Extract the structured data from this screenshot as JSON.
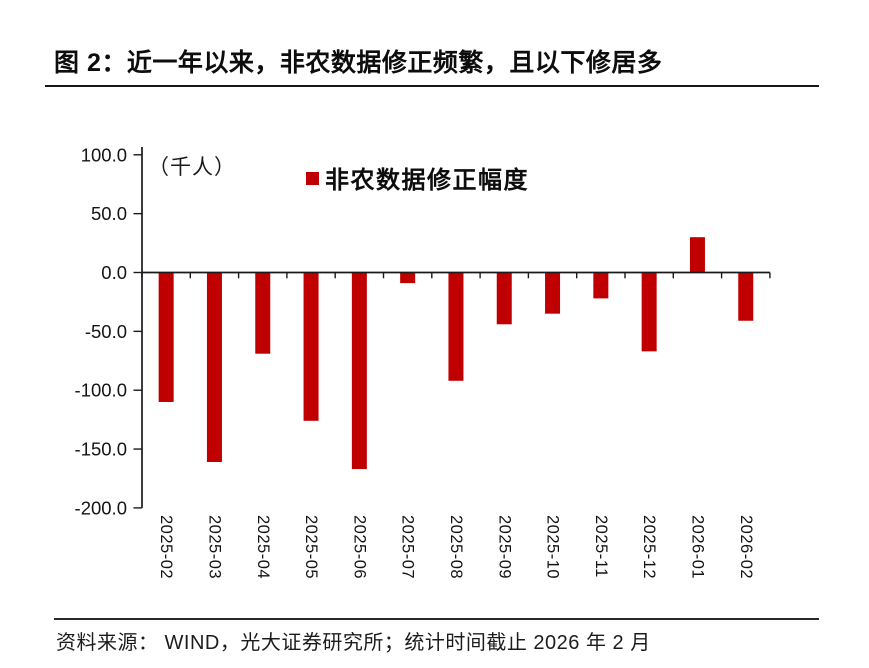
{
  "header": {
    "title": "图 2：近一年以来，非农数据修正频繁，且以下修居多"
  },
  "chart": {
    "unit_label": "（千人）",
    "legend_label": "非农数据修正幅度",
    "colors": {
      "bar": "#c00000",
      "axis": "#1a1a1a",
      "tick_text": "#141414"
    }
  },
  "chart_data": {
    "type": "bar",
    "title": "图 2：近一年以来，非农数据修正频繁，且以下修居多",
    "series_name": "非农数据修正幅度",
    "unit": "千人",
    "categories": [
      "2025-02",
      "2025-03",
      "2025-04",
      "2025-05",
      "2025-06",
      "2025-07",
      "2025-08",
      "2025-09",
      "2025-10",
      "2025-11",
      "2025-12",
      "2026-01",
      "2026-02"
    ],
    "values": [
      -110,
      -161,
      -69,
      -126,
      -167,
      -9,
      -92,
      -44,
      -35,
      -22,
      -67,
      30,
      -41
    ],
    "ylim": [
      -200,
      100
    ],
    "yticks": [
      100,
      50,
      0,
      -50,
      -100,
      -150,
      -200
    ],
    "ytick_labels": [
      "100.0",
      "50.0",
      "0.0",
      "-50.0",
      "-100.0",
      "-150.0",
      "-200.0"
    ],
    "xlabel": "",
    "ylabel": "（千人）",
    "grid": false,
    "legend_position": "top-center",
    "x_label_rotation_deg": 90
  },
  "footer": {
    "source": "资料来源：  WIND，光大证券研究所；统计时间截止 2026 年 2 月"
  }
}
